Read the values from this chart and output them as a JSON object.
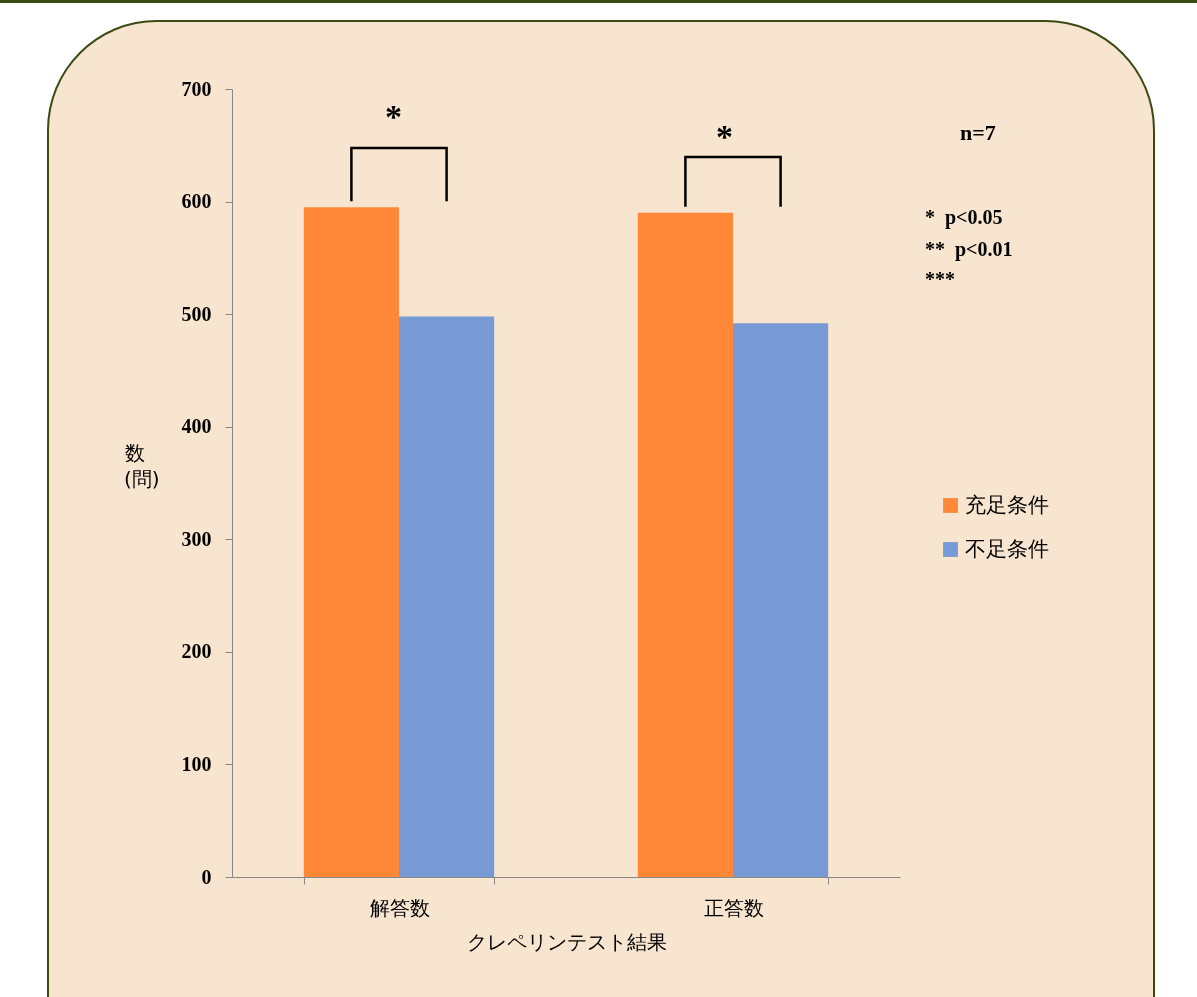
{
  "chart_data": {
    "type": "bar",
    "xlabel": "クレペリンテスト結果",
    "ylabel": "数(問)",
    "categories": [
      "解答数",
      "正答数"
    ],
    "series": [
      {
        "name": "充足条件",
        "color": "#fe8838",
        "values": [
          595,
          590
        ]
      },
      {
        "name": "不足条件",
        "color": "#7799d6",
        "values": [
          498,
          492
        ]
      }
    ],
    "ylim": [
      0,
      700
    ],
    "yticks": [
      0,
      100,
      200,
      300,
      400,
      500,
      600,
      700
    ],
    "grid": false,
    "legend": "right",
    "annotations": [
      "*",
      "*",
      "n=7",
      "*  p<0.05",
      "**  p<0.01",
      "***"
    ]
  }
}
